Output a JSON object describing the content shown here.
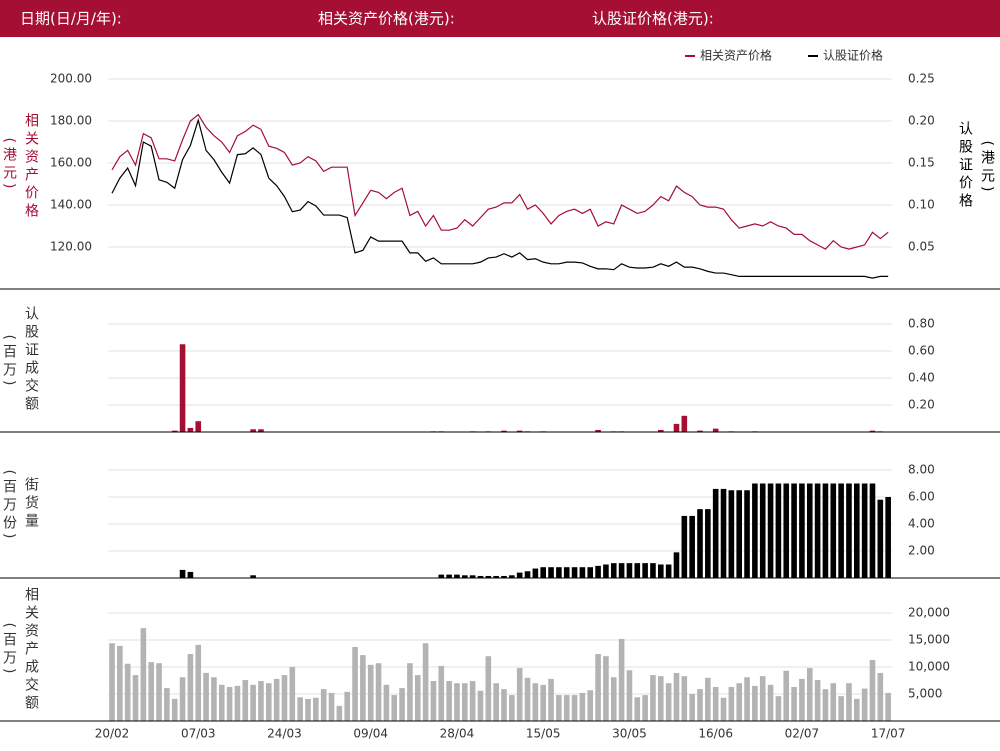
{
  "header": {
    "date_label": "日期(日/月/年):",
    "underlying_label": "相关资产价格(港元):",
    "warrant_label": "认股证价格(港元):"
  },
  "chart_data": [
    {
      "type": "line",
      "legend": "upper right",
      "grid": true,
      "ylabel": "相关资产价格",
      "ylabel_unit": "(港元)",
      "y2label": "认股证价格",
      "y2label_unit": "(港元)",
      "ylim": [
        100,
        210
      ],
      "yticks": [
        {
          "value": 120,
          "label": "120.00"
        },
        {
          "value": 140,
          "label": "140.00"
        },
        {
          "value": 160,
          "label": "160.00"
        },
        {
          "value": 180,
          "label": "180.00"
        },
        {
          "value": 200,
          "label": "200.00"
        }
      ],
      "y2lim": [
        0,
        0.275
      ],
      "y2ticks": [
        0.05,
        {
          "value": 0.1,
          "label": "0.10"
        },
        0.15,
        {
          "value": 0.2,
          "label": "0.20"
        },
        0.25
      ],
      "series": [
        {
          "name": "相关资产价格",
          "color": "#a50f34",
          "values": [
            156.7,
            163,
            166,
            159,
            174,
            172,
            162,
            162,
            161,
            171,
            180,
            183,
            177,
            173,
            170,
            165,
            173,
            175,
            178,
            176,
            168,
            167,
            165,
            159,
            160,
            163,
            161,
            156,
            158,
            158,
            158,
            135,
            141,
            147,
            146,
            143,
            146,
            148,
            135,
            137,
            130,
            135,
            128,
            128,
            129,
            133,
            130,
            134,
            138,
            139,
            141,
            141,
            145,
            138,
            140,
            136,
            131,
            135,
            137,
            138,
            136,
            138,
            130,
            132,
            131,
            140,
            138,
            136,
            137,
            140,
            144,
            142,
            149,
            146,
            144,
            140,
            139,
            139,
            138,
            133,
            129,
            130,
            131,
            130,
            132,
            130,
            129,
            126,
            126,
            123,
            121,
            119,
            123,
            120,
            119,
            120,
            121,
            127,
            124,
            127
          ]
        },
        {
          "name": "认股证价格",
          "color": "#000000",
          "axis": "y2",
          "values": [
            0.114,
            0.132,
            0.144,
            0.123,
            0.175,
            0.17,
            0.13,
            0.127,
            0.12,
            0.154,
            0.171,
            0.201,
            0.165,
            0.154,
            0.139,
            0.126,
            0.16,
            0.161,
            0.168,
            0.16,
            0.132,
            0.123,
            0.11,
            0.092,
            0.094,
            0.104,
            0.099,
            0.088,
            0.088,
            0.088,
            0.085,
            0.043,
            0.046,
            0.062,
            0.057,
            0.057,
            0.057,
            0.057,
            0.043,
            0.043,
            0.033,
            0.037,
            0.03,
            0.03,
            0.03,
            0.03,
            0.03,
            0.032,
            0.037,
            0.038,
            0.042,
            0.038,
            0.043,
            0.035,
            0.036,
            0.032,
            0.03,
            0.03,
            0.032,
            0.032,
            0.031,
            0.027,
            0.024,
            0.024,
            0.023,
            0.03,
            0.026,
            0.025,
            0.025,
            0.026,
            0.03,
            0.027,
            0.032,
            0.026,
            0.026,
            0.024,
            0.021,
            0.019,
            0.019,
            0.017,
            0.015,
            0.015,
            0.015,
            0.015,
            0.015,
            0.015,
            0.015,
            0.015,
            0.015,
            0.015,
            0.015,
            0.015,
            0.015,
            0.015,
            0.015,
            0.015,
            0.015,
            0.013,
            0.015,
            0.015
          ]
        }
      ]
    },
    {
      "type": "bar",
      "grid": true,
      "ylabel": "认股证成交额",
      "ylabel_unit": "(百万)",
      "color": "#a50f34",
      "ylim": [
        0,
        1.0
      ],
      "yticks": [
        {
          "value": 0.2,
          "label": "0.20"
        },
        {
          "value": 0.4,
          "label": "0.40"
        },
        {
          "value": 0.6,
          "label": "0.60"
        },
        {
          "value": 0.8,
          "label": "0.80"
        }
      ],
      "values": [
        0,
        0,
        0,
        0,
        0,
        0,
        0,
        0,
        0.01,
        0.65,
        0.03,
        0.08,
        0,
        0,
        0,
        0,
        0,
        0,
        0.02,
        0.02,
        0,
        0,
        0,
        0,
        0,
        0,
        0,
        0,
        0,
        0,
        0,
        0,
        0,
        0,
        0,
        0,
        0,
        0,
        0,
        0,
        0,
        0.005,
        0.005,
        0,
        0,
        0,
        0.005,
        0,
        0.005,
        0,
        0.01,
        0,
        0.01,
        0.005,
        0,
        0.005,
        0,
        0,
        0,
        0,
        0,
        0,
        0.015,
        0,
        0.005,
        0.005,
        0,
        0,
        0,
        0,
        0.015,
        0,
        0.06,
        0.12,
        0,
        0.01,
        0,
        0.025,
        0,
        0.005,
        0,
        0,
        0.005,
        0,
        0,
        0,
        0,
        0,
        0,
        0,
        0,
        0,
        0,
        0,
        0,
        0,
        0,
        0.01,
        0.005,
        0
      ]
    },
    {
      "type": "bar",
      "grid": true,
      "ylabel": "街货量",
      "ylabel_unit": "(百万份)",
      "color": "#000000",
      "ylim": [
        0,
        10
      ],
      "yticks": [
        {
          "value": 2,
          "label": "2.00"
        },
        {
          "value": 4,
          "label": "4.00"
        },
        {
          "value": 6,
          "label": "6.00"
        },
        {
          "value": 8,
          "label": "8.00"
        }
      ],
      "values": [
        0,
        0,
        0,
        0,
        0,
        0,
        0,
        0,
        0,
        0.6,
        0.45,
        0,
        0,
        0,
        0,
        0,
        0,
        0,
        0.2,
        0,
        0,
        0,
        0,
        0,
        0,
        0,
        0,
        0,
        0,
        0,
        0,
        0,
        0,
        0,
        0,
        0,
        0,
        0,
        0,
        0,
        0,
        0,
        0.25,
        0.25,
        0.25,
        0.2,
        0.2,
        0.15,
        0.15,
        0.15,
        0.15,
        0.2,
        0.4,
        0.5,
        0.7,
        0.8,
        0.8,
        0.8,
        0.8,
        0.8,
        0.8,
        0.8,
        0.9,
        1.0,
        1.1,
        1.1,
        1.1,
        1.1,
        1.1,
        1.1,
        1.0,
        1.0,
        1.9,
        4.6,
        4.6,
        5.1,
        5.1,
        6.6,
        6.6,
        6.5,
        6.5,
        6.5,
        7.0,
        7.0,
        7.0,
        7.0,
        7.0,
        7.0,
        7.0,
        7.0,
        7.0,
        7.0,
        7.0,
        7.0,
        7.0,
        7.0,
        7.0,
        7.0,
        5.8,
        6.0
      ]
    },
    {
      "type": "bar",
      "grid": true,
      "ylabel": "相关资产成交额",
      "ylabel_unit": "(百万)",
      "color": "#b3b3b3",
      "ylim": [
        0,
        25000
      ],
      "yticks": [
        {
          "value": 5000,
          "label": "5,000"
        },
        {
          "value": 10000,
          "label": "10,000"
        },
        {
          "value": 15000,
          "label": "15,000"
        },
        {
          "value": 20000,
          "label": "20,000"
        }
      ],
      "categories": [
        "20/02",
        null,
        null,
        null,
        null,
        null,
        null,
        null,
        null,
        null,
        null,
        "07/03",
        null,
        null,
        null,
        null,
        null,
        null,
        null,
        null,
        null,
        null,
        "24/03",
        null,
        null,
        null,
        null,
        null,
        null,
        null,
        null,
        null,
        null,
        "09/04",
        null,
        null,
        null,
        null,
        null,
        null,
        null,
        null,
        null,
        null,
        "28/04",
        null,
        null,
        null,
        null,
        null,
        null,
        null,
        null,
        null,
        null,
        "15/05",
        null,
        null,
        null,
        null,
        null,
        null,
        null,
        null,
        null,
        null,
        "30/05",
        null,
        null,
        null,
        null,
        null,
        null,
        null,
        null,
        null,
        null,
        "16/06",
        null,
        null,
        null,
        null,
        null,
        null,
        null,
        null,
        null,
        null,
        "02/07",
        null,
        null,
        null,
        null,
        null,
        null,
        null,
        null,
        null,
        null,
        "17/07"
      ],
      "values": [
        14400,
        13900,
        10600,
        8500,
        17200,
        10900,
        10700,
        6100,
        4100,
        8100,
        12400,
        14100,
        8900,
        8100,
        6700,
        6300,
        6500,
        7600,
        6700,
        7400,
        7000,
        7800,
        8500,
        10000,
        4400,
        4100,
        4300,
        5900,
        5200,
        2800,
        5400,
        13700,
        12200,
        10400,
        10700,
        6700,
        4800,
        6100,
        10700,
        8500,
        14400,
        7400,
        10200,
        7400,
        7000,
        7000,
        7400,
        5600,
        12000,
        7000,
        5900,
        4800,
        9800,
        8000,
        7000,
        6700,
        7800,
        4800,
        4800,
        4800,
        5200,
        5700,
        12400,
        12000,
        8100,
        15200,
        9400,
        4400,
        4800,
        8500,
        8300,
        7000,
        8900,
        8300,
        5000,
        5900,
        8000,
        6300,
        4300,
        6300,
        7000,
        8100,
        6500,
        8300,
        6700,
        4600,
        9300,
        6300,
        7800,
        9800,
        7600,
        5900,
        7000,
        4600,
        7000,
        4100,
        6000,
        11300,
        8900,
        5200
      ]
    }
  ]
}
